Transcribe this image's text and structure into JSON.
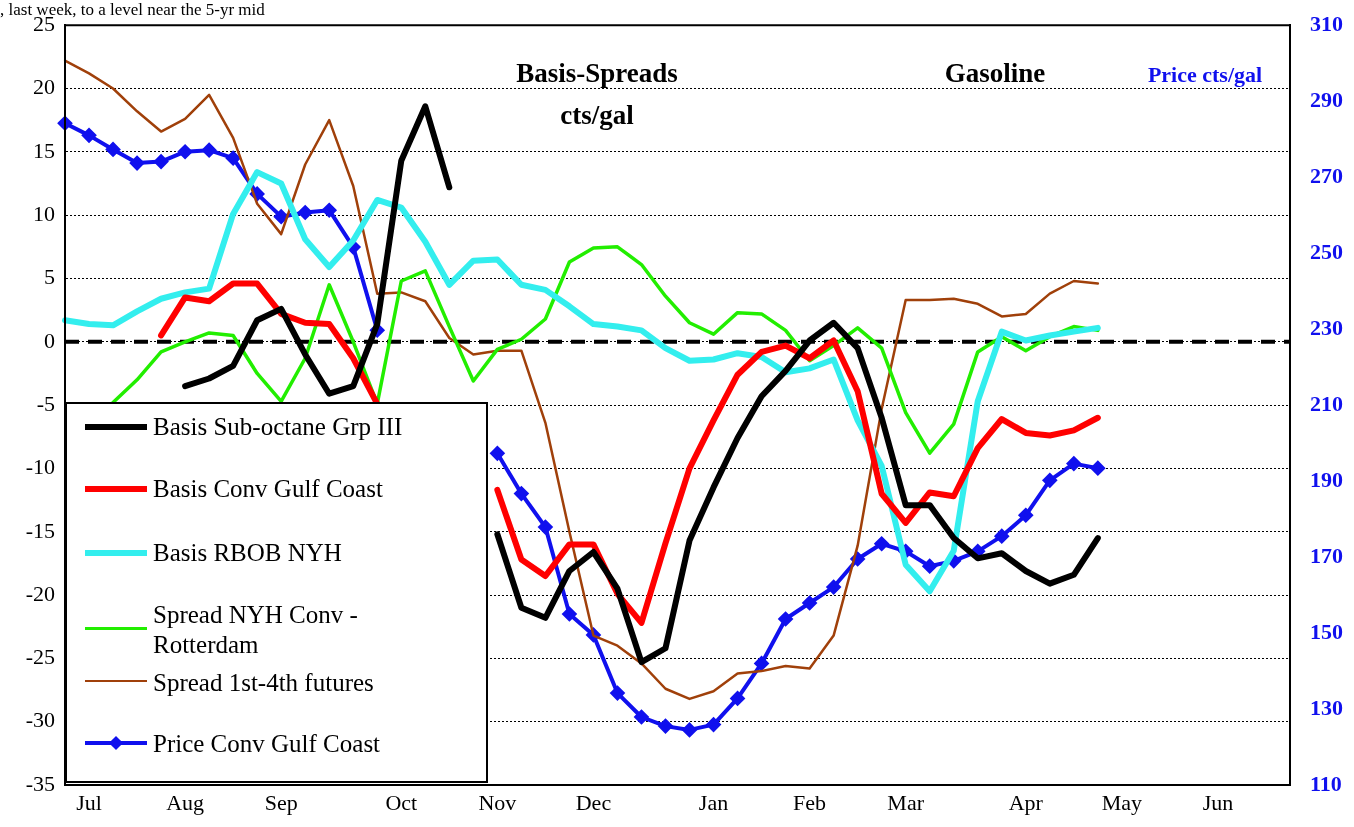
{
  "chart_data": {
    "type": "line",
    "title": "Basis-Spreads",
    "subtitle": "cts/gal",
    "y2label": "Price cts/gal",
    "annotations": [
      "Gasoline",
      ", last week, to a level near the 5-yr mid"
    ],
    "categories": [
      null,
      "Jul",
      null,
      null,
      null,
      "Aug",
      null,
      null,
      null,
      "Sep",
      null,
      null,
      null,
      null,
      "Oct",
      null,
      null,
      null,
      "Nov",
      null,
      null,
      null,
      "Dec",
      null,
      null,
      null,
      null,
      "Jan",
      null,
      null,
      null,
      "Feb",
      null,
      null,
      null,
      "Mar",
      null,
      null,
      null,
      null,
      "Apr",
      null,
      null,
      null,
      "May",
      null,
      null,
      null,
      "Jun",
      null,
      null,
      null
    ],
    "ylim": [
      -35,
      25
    ],
    "yticks": [
      -35,
      -30,
      -25,
      -20,
      -15,
      -10,
      -5,
      0,
      5,
      10,
      15,
      20,
      25
    ],
    "y2lim": [
      110,
      310
    ],
    "y2ticks": [
      110,
      130,
      150,
      170,
      190,
      210,
      230,
      250,
      270,
      290,
      310
    ],
    "grid": "y",
    "legend": "bottom left",
    "ref_lines": [
      {
        "axis": "y",
        "value": 0,
        "color": "#000000",
        "line_style": "dashed"
      }
    ],
    "series": [
      {
        "name": "Basis Sub-octane Grp III",
        "color": "#000000",
        "marker": "none",
        "values": [
          null,
          null,
          null,
          null,
          null,
          -3.5,
          -2.9,
          -1.9,
          1.7,
          2.6,
          -1.0,
          -4.1,
          -3.5,
          1.4,
          14.3,
          18.6,
          12.2,
          null,
          -15.2,
          -21.0,
          -21.8,
          -18.1,
          -16.6,
          -19.5,
          -25.3,
          -24.2,
          -15.7,
          -11.5,
          -7.6,
          -4.3,
          -2.3,
          0.1,
          1.5,
          -0.5,
          -6.0,
          -12.9,
          -12.9,
          -15.5,
          -17.1,
          -16.7,
          -18.1,
          -19.1,
          -18.4,
          -15.5,
          null,
          null,
          null,
          null,
          null,
          null,
          null,
          null
        ]
      },
      {
        "name": "Basis Conv Gulf Coast",
        "color": "#ff0000",
        "marker": "none",
        "values": [
          null,
          null,
          null,
          null,
          0.5,
          3.5,
          3.2,
          4.6,
          4.6,
          2.2,
          1.5,
          1.4,
          -1.3,
          -4.9,
          null,
          null,
          null,
          null,
          -11.7,
          -17.2,
          -18.5,
          -16.0,
          -16.0,
          -19.9,
          -22.2,
          -15.9,
          -10.0,
          -6.2,
          -2.6,
          -0.8,
          -0.3,
          -1.3,
          0.1,
          -3.9,
          -12.0,
          -14.3,
          -11.9,
          -12.2,
          -8.4,
          -6.1,
          -7.2,
          -7.4,
          -7.0,
          -6.0,
          null,
          null,
          null,
          null,
          null,
          null,
          null,
          null
        ]
      },
      {
        "name": "Basis RBOB NYH",
        "color": "#33eeee",
        "marker": "none",
        "values": [
          1.7,
          1.4,
          1.3,
          2.4,
          3.4,
          3.9,
          4.2,
          10.1,
          13.4,
          12.5,
          8.1,
          5.9,
          8.0,
          11.2,
          10.6,
          7.9,
          4.5,
          6.4,
          6.5,
          4.5,
          4.1,
          2.8,
          1.4,
          1.2,
          0.9,
          -0.5,
          -1.5,
          -1.4,
          -0.9,
          -1.2,
          -2.4,
          -2.1,
          -1.4,
          -6.2,
          -9.8,
          -17.6,
          -19.7,
          -16.5,
          -4.7,
          0.8,
          0.1,
          0.5,
          0.8,
          1.1,
          null,
          null,
          null,
          null,
          null,
          null,
          null,
          null
        ]
      },
      {
        "name": "Spread NYH Conv - Rotterdam",
        "color": "#22ee00",
        "marker": "none",
        "values": [
          null,
          null,
          -4.8,
          -3.0,
          -0.8,
          0.0,
          0.7,
          0.5,
          -2.5,
          -4.7,
          -1.3,
          4.5,
          0.0,
          -4.9,
          4.8,
          5.6,
          1.2,
          -3.1,
          -0.6,
          0.2,
          1.8,
          6.3,
          7.4,
          7.5,
          6.1,
          3.6,
          1.5,
          0.6,
          2.3,
          2.2,
          0.9,
          -1.5,
          -0.3,
          1.1,
          -0.5,
          -5.6,
          -8.8,
          -6.5,
          -0.8,
          0.4,
          -0.7,
          0.4,
          1.2,
          0.9,
          null,
          null,
          null,
          null,
          null,
          null,
          null,
          null
        ]
      },
      {
        "name": "Spread 1st-4th futures",
        "color": "#a0400a",
        "marker": "none",
        "values": [
          22.2,
          21.2,
          20.0,
          18.2,
          16.6,
          17.6,
          19.5,
          16.1,
          10.9,
          8.5,
          14.0,
          17.5,
          12.3,
          3.8,
          3.9,
          3.2,
          0.3,
          -1.0,
          -0.7,
          -0.7,
          -6.4,
          -15.0,
          -23.2,
          -24.0,
          -25.4,
          -27.4,
          -28.2,
          -27.6,
          -26.2,
          -26.0,
          -25.6,
          -25.8,
          -23.2,
          -16.1,
          -5.3,
          3.3,
          3.3,
          3.4,
          3.0,
          2.0,
          2.2,
          3.8,
          4.8,
          4.6,
          null,
          null,
          null,
          null,
          null,
          null,
          null,
          null
        ]
      },
      {
        "name": "Price Conv Gulf Coast",
        "color": "#1010ee",
        "marker": "diamond",
        "axis": "y2",
        "values": [
          284.2,
          281.0,
          277.3,
          273.7,
          274.1,
          276.7,
          277.1,
          275.0,
          265.6,
          259.6,
          260.7,
          261.3,
          251.6,
          229.7,
          null,
          null,
          null,
          null,
          197.3,
          186.7,
          177.9,
          155.0,
          149.5,
          134.2,
          127.9,
          125.5,
          124.5,
          125.9,
          132.8,
          142.0,
          153.7,
          157.9,
          162.1,
          169.5,
          173.5,
          171.5,
          167.6,
          169.0,
          171.5,
          175.5,
          181.0,
          190.2,
          194.6,
          193.4,
          null,
          null,
          null,
          null,
          null,
          null,
          null,
          null
        ]
      }
    ]
  }
}
